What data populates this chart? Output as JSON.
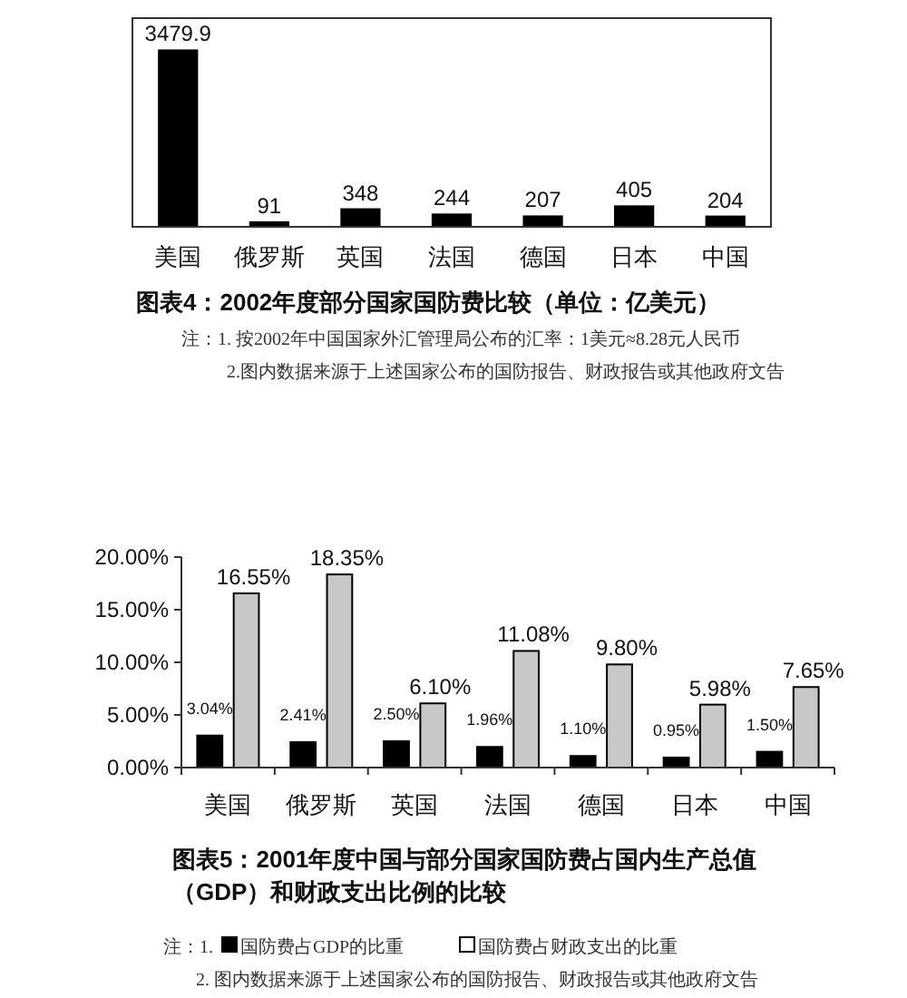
{
  "chart_data": [
    {
      "type": "bar",
      "title": "图表4：2002年度部分国家国防费比较（单位：亿美元）",
      "categories": [
        "美国",
        "俄罗斯",
        "英国",
        "法国",
        "德国",
        "日本",
        "中国"
      ],
      "values": [
        3479.9,
        91,
        348,
        244,
        207,
        405,
        204
      ],
      "color": "#000000",
      "data_labels": true,
      "annotations": [
        "注：1. 按2002年中国国家外汇管理局公布的汇率：1美元≈8.28元人民币",
        "2.图内数据来源于上述国家公布的国防报告、财政报告或其他政府文告"
      ]
    },
    {
      "type": "bar",
      "title": "图表5：2001年度中国与部分国家国防费占国内生产总值（GDP）和财政支出比例的比较",
      "categories": [
        "美国",
        "俄罗斯",
        "英国",
        "法国",
        "德国",
        "日本",
        "中国"
      ],
      "series": [
        {
          "name": "国防费占GDP的比重",
          "color": "#000000",
          "values": [
            3.04,
            2.41,
            2.5,
            1.96,
            1.1,
            0.95,
            1.5
          ],
          "value_labels": [
            "3.04%",
            "2.41%",
            "2.50%",
            "1.96%",
            "1.10%",
            "0.95%",
            "1.50%"
          ]
        },
        {
          "name": "国防费占财政支出的比重",
          "color": "#c8c8c8",
          "values": [
            16.55,
            18.35,
            6.1,
            11.08,
            9.8,
            5.98,
            7.65
          ],
          "value_labels": [
            "16.55%",
            "18.35%",
            "6.10%",
            "11.08%",
            "9.80%",
            "5.98%",
            "7.65%"
          ]
        }
      ],
      "ylim": [
        0,
        20
      ],
      "yticks": [
        {
          "value": 0,
          "label": "0.00%"
        },
        {
          "value": 5,
          "label": "5.00%"
        },
        {
          "value": 10,
          "label": "10.00%"
        },
        {
          "value": 15,
          "label": "15.00%"
        },
        {
          "value": 20,
          "label": "20.00%"
        }
      ],
      "legend": "bottom",
      "annotations": [
        "注：1.",
        "2. 图内数据来源于上述国家公布的国防报告、财政报告或其他政府文告"
      ]
    }
  ]
}
